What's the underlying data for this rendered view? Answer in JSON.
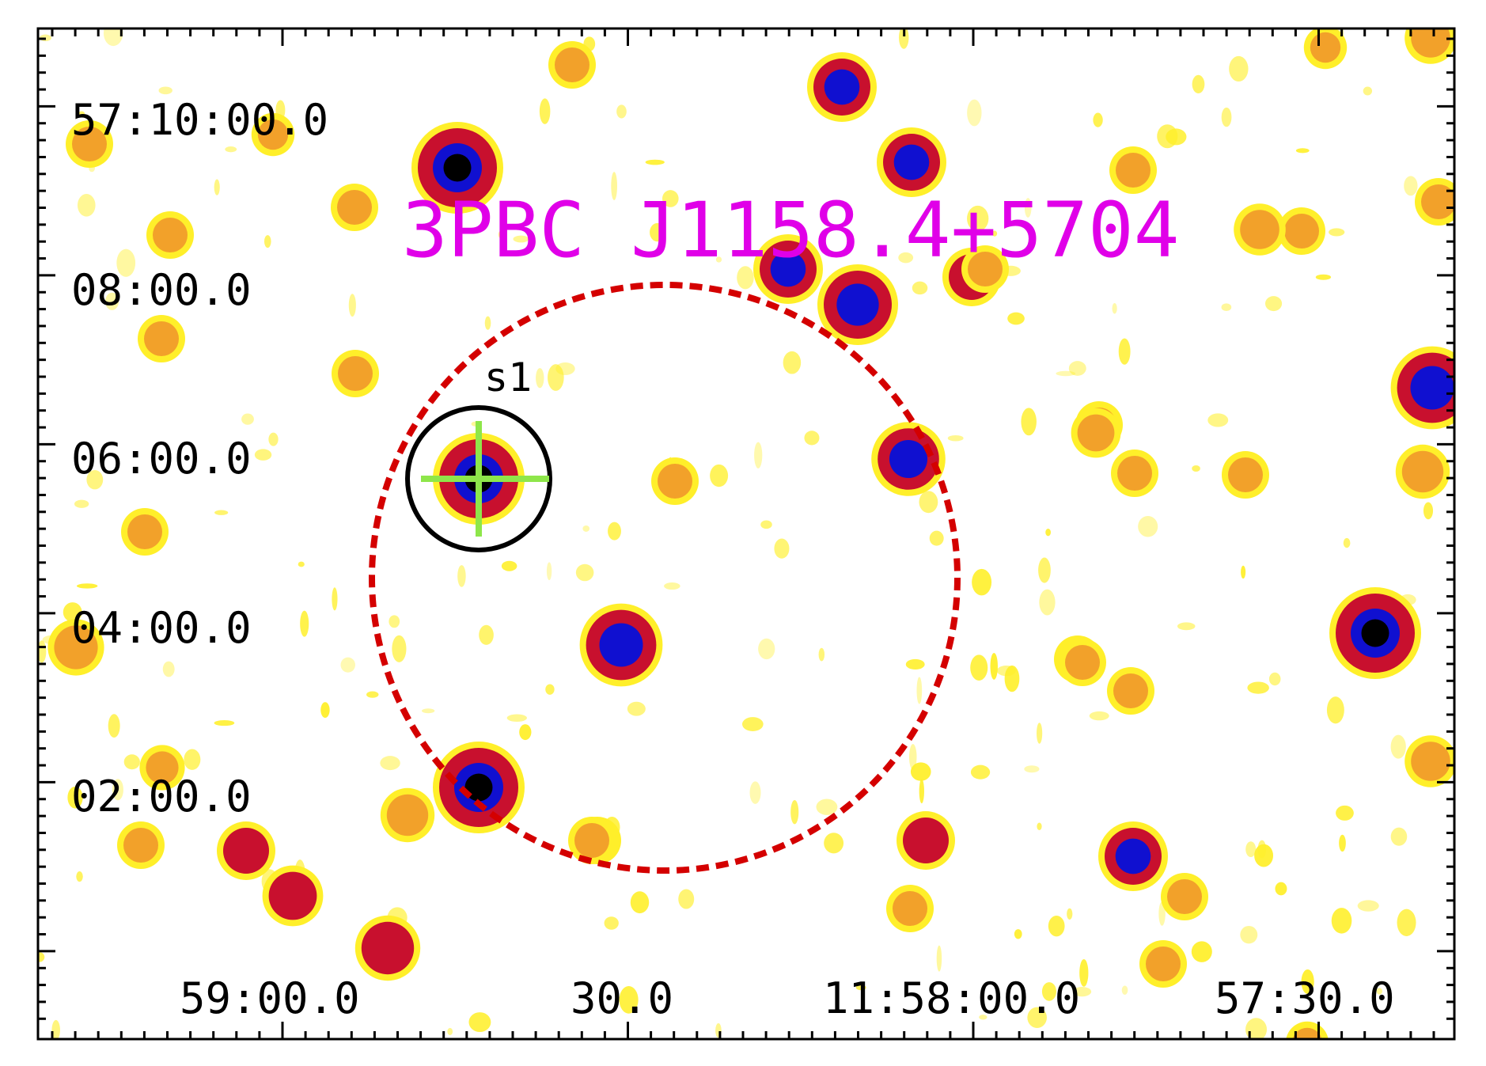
{
  "title": "3PBC J1158.4+5704",
  "source_label": "s1",
  "y_axis_labels": [
    "57:10:00.0",
    "08:00.0",
    "06:00.0",
    "04:00.0",
    "02:00.0"
  ],
  "x_axis_labels": [
    "59:00.0",
    "30.0",
    "11:58:00.0",
    "57:30.0"
  ],
  "colors": {
    "title": "#e000e8",
    "error_circle": "#d40000",
    "source_circle": "#000000",
    "crosshair": "#8ee64a",
    "frame": "#000000",
    "background": "#ffffff",
    "halo": "#ffef2a",
    "ring": "#c8102e",
    "core": "#1010d0",
    "nucleus": "#000000"
  }
}
